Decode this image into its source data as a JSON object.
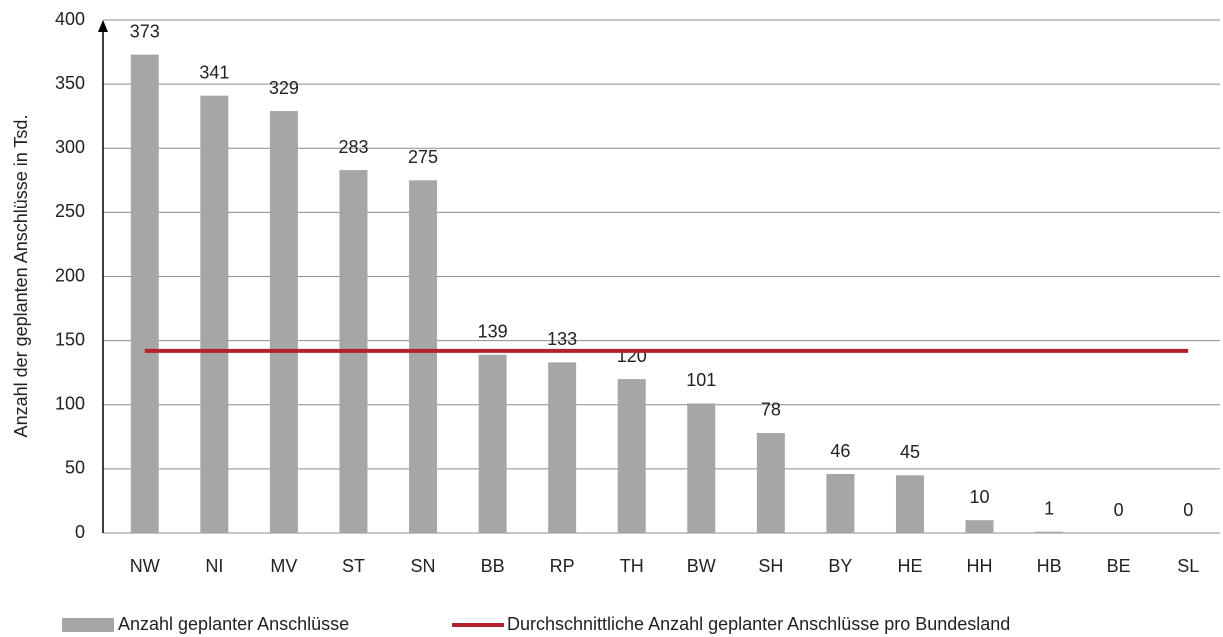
{
  "chart_data": {
    "type": "bar",
    "y_label": "Anzahl der geplanten Anschlüsse in Tsd.",
    "categories": [
      "NW",
      "NI",
      "MV",
      "ST",
      "SN",
      "BB",
      "RP",
      "TH",
      "BW",
      "SH",
      "BY",
      "HE",
      "HH",
      "HB",
      "BE",
      "SL"
    ],
    "series": [
      {
        "name": "Anzahl geplanter Anschlüsse",
        "color": "#a6a6a6",
        "values": [
          373,
          341,
          329,
          283,
          275,
          139,
          133,
          120,
          101,
          78,
          46,
          45,
          10,
          1,
          0,
          0
        ]
      }
    ],
    "reference_line": {
      "name": "Durchschnittliche Anzahl geplanter Anschlüsse pro Bundesland",
      "value": 142,
      "color": "#b5202e"
    },
    "ylim": [
      0,
      400
    ],
    "yticks": [
      0,
      50,
      100,
      150,
      200,
      250,
      300,
      350,
      400
    ],
    "grid": true,
    "legend": "bottom"
  }
}
